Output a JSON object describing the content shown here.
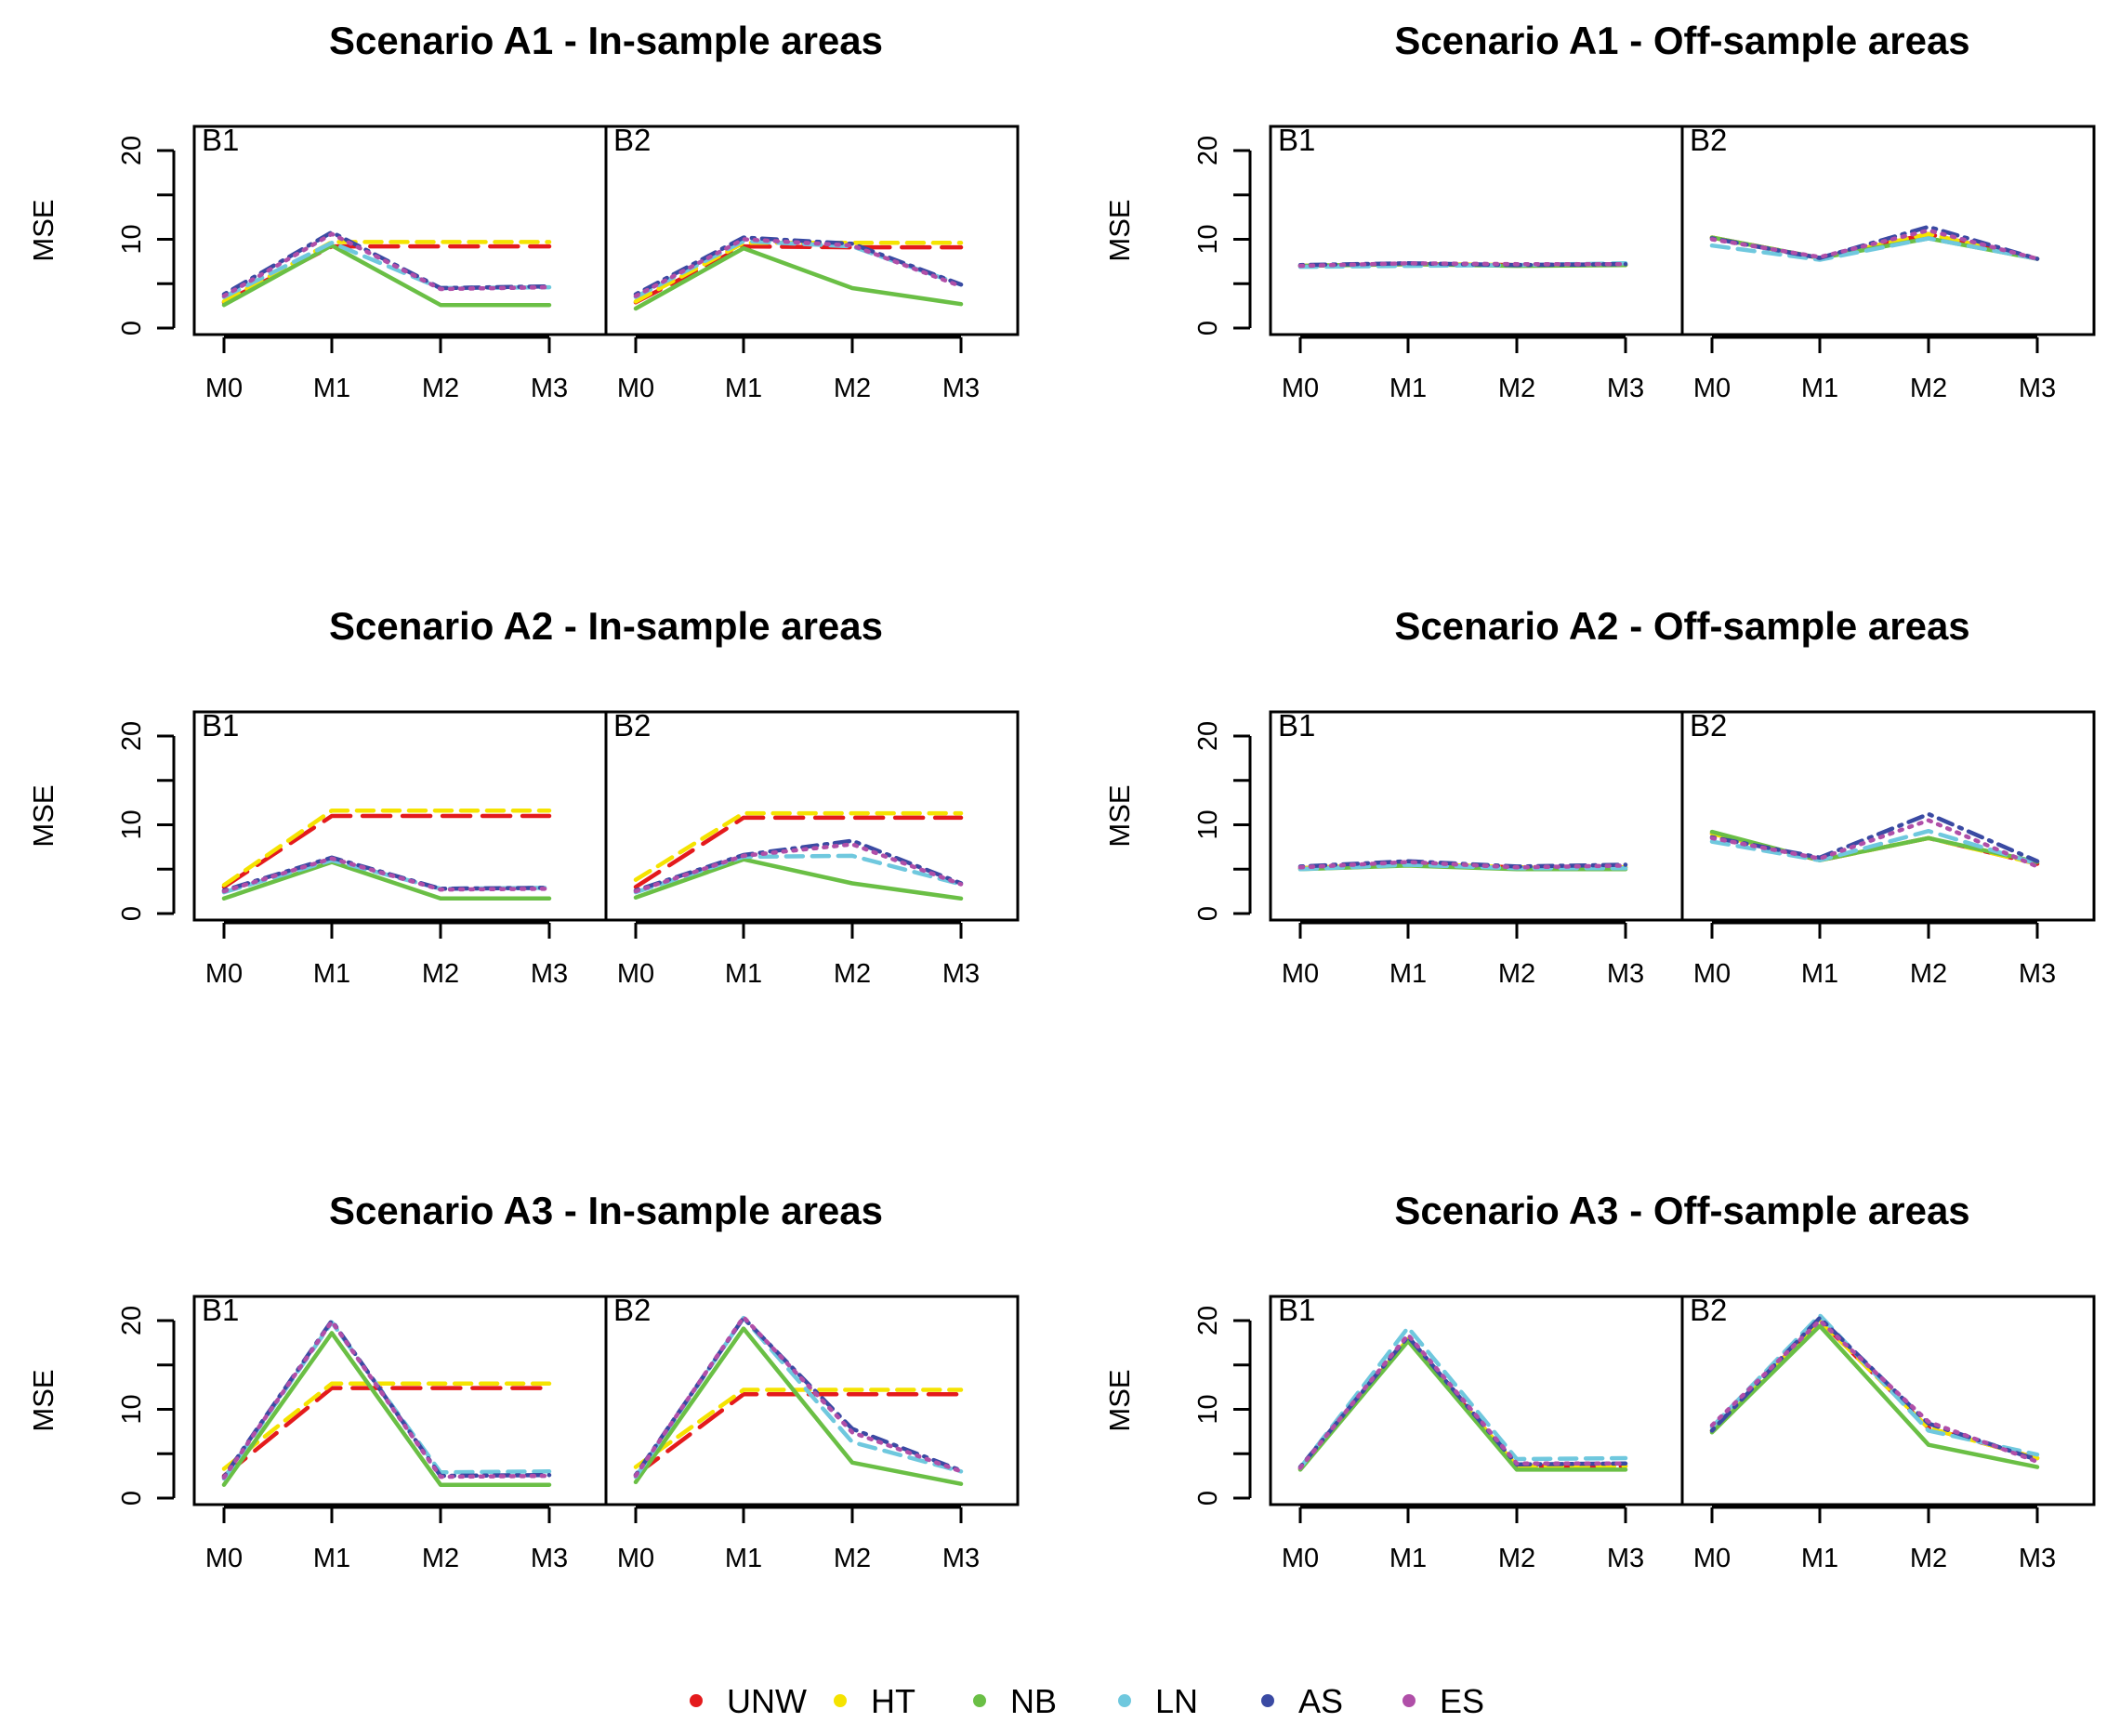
{
  "chart_data": {
    "type": "line",
    "categories": [
      "M0",
      "M1",
      "M2",
      "M3"
    ],
    "ylabel": "MSE",
    "ylim": [
      0,
      20
    ],
    "yticks": [
      0,
      10,
      20
    ],
    "grid": false,
    "legend_position": "bottom",
    "series_styles": [
      {
        "name": "UNW",
        "color": "#e41a1c",
        "dash": "long-dash"
      },
      {
        "name": "HT",
        "color": "#f5e300",
        "dash": "dash"
      },
      {
        "name": "NB",
        "color": "#6abf45",
        "dash": "solid"
      },
      {
        "name": "LN",
        "color": "#6fc8de",
        "dash": "dash"
      },
      {
        "name": "AS",
        "color": "#3a4aa3",
        "dash": "dot-dash"
      },
      {
        "name": "ES",
        "color": "#b04fa8",
        "dash": "dot"
      }
    ],
    "panels": [
      {
        "title": "Scenario A1 - In-sample areas",
        "facets": [
          {
            "label": "B1",
            "series": [
              {
                "name": "UNW",
                "values": [
                  2.9,
                  9.2,
                  9.2,
                  9.2
                ]
              },
              {
                "name": "HT",
                "values": [
                  3.0,
                  9.7,
                  9.7,
                  9.7
                ]
              },
              {
                "name": "NB",
                "values": [
                  2.6,
                  9.3,
                  2.6,
                  2.6
                ]
              },
              {
                "name": "LN",
                "values": [
                  3.5,
                  9.6,
                  4.5,
                  4.6
                ]
              },
              {
                "name": "AS",
                "values": [
                  3.8,
                  10.8,
                  4.5,
                  4.7
                ]
              },
              {
                "name": "ES",
                "values": [
                  3.6,
                  10.6,
                  4.4,
                  4.6
                ]
              }
            ]
          },
          {
            "label": "B2",
            "series": [
              {
                "name": "UNW",
                "values": [
                  2.9,
                  9.2,
                  9.1,
                  9.1
                ]
              },
              {
                "name": "HT",
                "values": [
                  3.0,
                  9.6,
                  9.6,
                  9.6
                ]
              },
              {
                "name": "NB",
                "values": [
                  2.2,
                  9.0,
                  4.5,
                  2.7
                ]
              },
              {
                "name": "LN",
                "values": [
                  3.5,
                  9.8,
                  9.2,
                  4.9
                ]
              },
              {
                "name": "AS",
                "values": [
                  3.8,
                  10.2,
                  9.5,
                  4.9
                ]
              },
              {
                "name": "ES",
                "values": [
                  3.6,
                  10.0,
                  9.3,
                  4.7
                ]
              }
            ]
          }
        ]
      },
      {
        "title": "Scenario A1 - Off-sample areas",
        "facets": [
          {
            "label": "B1",
            "series": [
              {
                "name": "UNW",
                "values": [
                  7.0,
                  7.2,
                  7.1,
                  7.1
                ]
              },
              {
                "name": "HT",
                "values": [
                  7.0,
                  7.2,
                  7.1,
                  7.1
                ]
              },
              {
                "name": "NB",
                "values": [
                  7.0,
                  7.2,
                  7.0,
                  7.1
                ]
              },
              {
                "name": "LN",
                "values": [
                  6.9,
                  7.0,
                  7.1,
                  7.3
                ]
              },
              {
                "name": "AS",
                "values": [
                  7.1,
                  7.3,
                  7.1,
                  7.2
                ]
              },
              {
                "name": "ES",
                "values": [
                  7.0,
                  7.3,
                  7.2,
                  7.2
                ]
              }
            ]
          },
          {
            "label": "B2",
            "series": [
              {
                "name": "UNW",
                "values": [
                  10.2,
                  7.9,
                  10.6,
                  7.8
                ]
              },
              {
                "name": "HT",
                "values": [
                  10.2,
                  7.9,
                  10.6,
                  7.8
                ]
              },
              {
                "name": "NB",
                "values": [
                  10.2,
                  7.9,
                  10.1,
                  7.8
                ]
              },
              {
                "name": "LN",
                "values": [
                  9.3,
                  7.7,
                  10.1,
                  7.8
                ]
              },
              {
                "name": "AS",
                "values": [
                  10.1,
                  7.9,
                  11.4,
                  7.8
                ]
              },
              {
                "name": "ES",
                "values": [
                  10.0,
                  8.0,
                  11.0,
                  7.8
                ]
              }
            ]
          }
        ]
      },
      {
        "title": "Scenario A2 - In-sample areas",
        "facets": [
          {
            "label": "B1",
            "series": [
              {
                "name": "UNW",
                "values": [
                  3.0,
                  11.0,
                  11.0,
                  11.0
                ]
              },
              {
                "name": "HT",
                "values": [
                  3.2,
                  11.6,
                  11.6,
                  11.6
                ]
              },
              {
                "name": "NB",
                "values": [
                  1.7,
                  5.8,
                  1.7,
                  1.7
                ]
              },
              {
                "name": "LN",
                "values": [
                  2.4,
                  6.0,
                  2.8,
                  2.9
                ]
              },
              {
                "name": "AS",
                "values": [
                  2.6,
                  6.3,
                  2.8,
                  2.9
                ]
              },
              {
                "name": "ES",
                "values": [
                  2.5,
                  6.2,
                  2.7,
                  2.8
                ]
              }
            ]
          },
          {
            "label": "B2",
            "series": [
              {
                "name": "UNW",
                "values": [
                  3.0,
                  10.8,
                  10.8,
                  10.8
                ]
              },
              {
                "name": "HT",
                "values": [
                  3.8,
                  11.3,
                  11.3,
                  11.3
                ]
              },
              {
                "name": "NB",
                "values": [
                  1.8,
                  6.1,
                  3.4,
                  1.7
                ]
              },
              {
                "name": "LN",
                "values": [
                  2.4,
                  6.4,
                  6.5,
                  3.3
                ]
              },
              {
                "name": "AS",
                "values": [
                  2.6,
                  6.6,
                  8.2,
                  3.4
                ]
              },
              {
                "name": "ES",
                "values": [
                  2.5,
                  6.5,
                  7.8,
                  3.3
                ]
              }
            ]
          }
        ]
      },
      {
        "title": "Scenario A2 - Off-sample areas",
        "facets": [
          {
            "label": "B1",
            "series": [
              {
                "name": "UNW",
                "values": [
                  5.1,
                  5.6,
                  5.2,
                  5.2
                ]
              },
              {
                "name": "HT",
                "values": [
                  5.1,
                  5.6,
                  5.2,
                  5.2
                ]
              },
              {
                "name": "NB",
                "values": [
                  5.0,
                  5.4,
                  5.0,
                  5.0
                ]
              },
              {
                "name": "LN",
                "values": [
                  5.0,
                  5.5,
                  5.1,
                  5.1
                ]
              },
              {
                "name": "AS",
                "values": [
                  5.3,
                  5.9,
                  5.3,
                  5.5
                ]
              },
              {
                "name": "ES",
                "values": [
                  5.2,
                  5.8,
                  5.2,
                  5.4
                ]
              }
            ]
          },
          {
            "label": "B2",
            "series": [
              {
                "name": "UNW",
                "values": [
                  9.0,
                  6.0,
                  8.5,
                  5.6
                ]
              },
              {
                "name": "HT",
                "values": [
                  9.0,
                  6.0,
                  8.5,
                  5.6
                ]
              },
              {
                "name": "NB",
                "values": [
                  9.2,
                  6.0,
                  8.5,
                  5.8
                ]
              },
              {
                "name": "LN",
                "values": [
                  8.1,
                  6.0,
                  9.3,
                  5.6
                ]
              },
              {
                "name": "AS",
                "values": [
                  8.6,
                  6.3,
                  11.2,
                  5.9
                ]
              },
              {
                "name": "ES",
                "values": [
                  8.5,
                  6.2,
                  10.5,
                  5.3
                ]
              }
            ]
          }
        ]
      },
      {
        "title": "Scenario A3 - In-sample areas",
        "facets": [
          {
            "label": "B1",
            "series": [
              {
                "name": "UNW",
                "values": [
                  2.5,
                  12.4,
                  12.4,
                  12.4
                ]
              },
              {
                "name": "HT",
                "values": [
                  3.3,
                  12.9,
                  12.9,
                  12.9
                ]
              },
              {
                "name": "NB",
                "values": [
                  1.5,
                  18.6,
                  1.5,
                  1.5
                ]
              },
              {
                "name": "LN",
                "values": [
                  2.2,
                  19.8,
                  2.9,
                  3.0
                ]
              },
              {
                "name": "AS",
                "values": [
                  2.4,
                  20.0,
                  2.5,
                  2.6
                ]
              },
              {
                "name": "ES",
                "values": [
                  2.3,
                  19.9,
                  2.4,
                  2.5
                ]
              }
            ]
          },
          {
            "label": "B2",
            "series": [
              {
                "name": "UNW",
                "values": [
                  2.6,
                  11.7,
                  11.7,
                  11.7
                ]
              },
              {
                "name": "HT",
                "values": [
                  3.5,
                  12.2,
                  12.2,
                  12.2
                ]
              },
              {
                "name": "NB",
                "values": [
                  1.8,
                  19.1,
                  4.0,
                  1.6
                ]
              },
              {
                "name": "LN",
                "values": [
                  2.4,
                  20.3,
                  6.3,
                  3.0
                ]
              },
              {
                "name": "AS",
                "values": [
                  2.6,
                  20.3,
                  7.8,
                  3.1
                ]
              },
              {
                "name": "ES",
                "values": [
                  2.5,
                  20.4,
                  7.4,
                  3.0
                ]
              }
            ]
          }
        ]
      },
      {
        "title": "Scenario A3 - Off-sample areas",
        "facets": [
          {
            "label": "B1",
            "series": [
              {
                "name": "UNW",
                "values": [
                  3.3,
                  17.9,
                  3.6,
                  3.6
                ]
              },
              {
                "name": "HT",
                "values": [
                  3.3,
                  17.9,
                  3.6,
                  3.6
                ]
              },
              {
                "name": "NB",
                "values": [
                  3.2,
                  17.7,
                  3.2,
                  3.2
                ]
              },
              {
                "name": "LN",
                "values": [
                  3.4,
                  19.2,
                  4.4,
                  4.5
                ]
              },
              {
                "name": "AS",
                "values": [
                  3.5,
                  18.2,
                  3.8,
                  3.9
                ]
              },
              {
                "name": "ES",
                "values": [
                  3.4,
                  18.4,
                  3.9,
                  3.9
                ]
              }
            ]
          },
          {
            "label": "B2",
            "series": [
              {
                "name": "UNW",
                "values": [
                  7.6,
                  20.0,
                  7.9,
                  4.5
                ]
              },
              {
                "name": "HT",
                "values": [
                  7.6,
                  20.0,
                  7.9,
                  4.5
                ]
              },
              {
                "name": "NB",
                "values": [
                  7.4,
                  19.4,
                  6.0,
                  3.5
                ]
              },
              {
                "name": "LN",
                "values": [
                  8.0,
                  20.6,
                  7.6,
                  4.9
                ]
              },
              {
                "name": "AS",
                "values": [
                  7.6,
                  20.3,
                  8.4,
                  4.3
                ]
              },
              {
                "name": "ES",
                "values": [
                  8.2,
                  20.0,
                  8.6,
                  4.1
                ]
              }
            ]
          }
        ]
      }
    ]
  }
}
